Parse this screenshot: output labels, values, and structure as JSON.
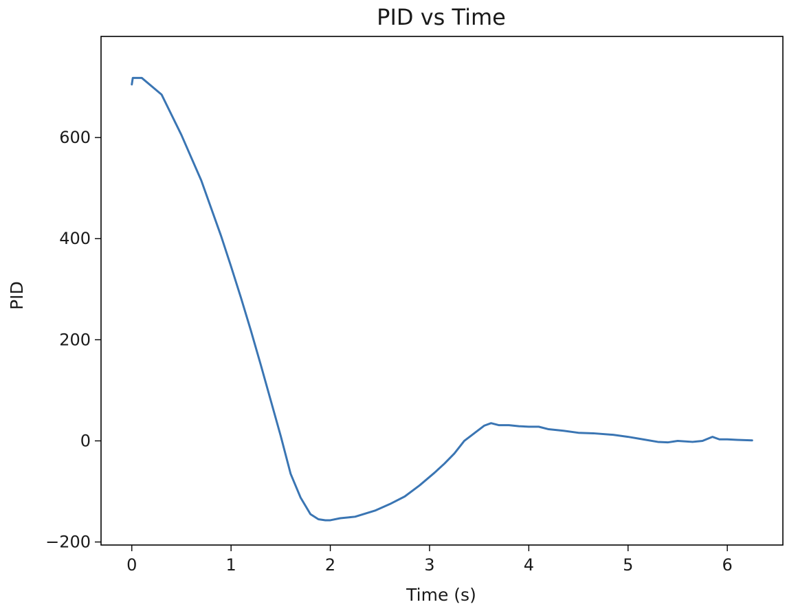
{
  "chart_data": {
    "type": "line",
    "title": "PID vs Time",
    "xlabel": "Time (s)",
    "ylabel": "PID",
    "xlim": [
      -0.31,
      6.56
    ],
    "ylim": [
      -206,
      800
    ],
    "xticks": [
      {
        "value": 0,
        "label": "0"
      },
      {
        "value": 1,
        "label": "1"
      },
      {
        "value": 2,
        "label": "2"
      },
      {
        "value": 3,
        "label": "3"
      },
      {
        "value": 4,
        "label": "4"
      },
      {
        "value": 5,
        "label": "5"
      },
      {
        "value": 6,
        "label": "6"
      }
    ],
    "yticks": [
      {
        "value": -200,
        "label": "−200"
      },
      {
        "value": 0,
        "label": "0"
      },
      {
        "value": 200,
        "label": "200"
      },
      {
        "value": 400,
        "label": "400"
      },
      {
        "value": 600,
        "label": "600"
      }
    ],
    "grid": false,
    "line_color": "#3a75b3",
    "series": [
      {
        "x": [
          0.0,
          0.01,
          0.1,
          0.3,
          0.4,
          0.5,
          0.6,
          0.7,
          0.8,
          0.9,
          1.0,
          1.1,
          1.2,
          1.3,
          1.4,
          1.5,
          1.6,
          1.7,
          1.8,
          1.88,
          1.95,
          2.0,
          2.1,
          2.25,
          2.45,
          2.6,
          2.75,
          2.9,
          3.05,
          3.15,
          3.25,
          3.35,
          3.45,
          3.55,
          3.62,
          3.7,
          3.8,
          3.9,
          4.0,
          4.1,
          4.2,
          4.35,
          4.5,
          4.65,
          4.85,
          5.0,
          5.15,
          5.3,
          5.4,
          5.5,
          5.65,
          5.75,
          5.85,
          5.92,
          6.0,
          6.1,
          6.25
        ],
        "y": [
          705,
          718,
          718,
          685,
          645,
          605,
          560,
          515,
          460,
          405,
          345,
          283,
          218,
          150,
          80,
          10,
          -65,
          -112,
          -145,
          -155,
          -157,
          -157,
          -153,
          -150,
          -138,
          -125,
          -110,
          -88,
          -63,
          -45,
          -25,
          0,
          15,
          30,
          35,
          31,
          31,
          29,
          28,
          28,
          23,
          20,
          16,
          15,
          12,
          8,
          3,
          -2,
          -3,
          0,
          -2,
          0,
          8,
          3,
          3,
          2,
          1
        ]
      }
    ]
  }
}
